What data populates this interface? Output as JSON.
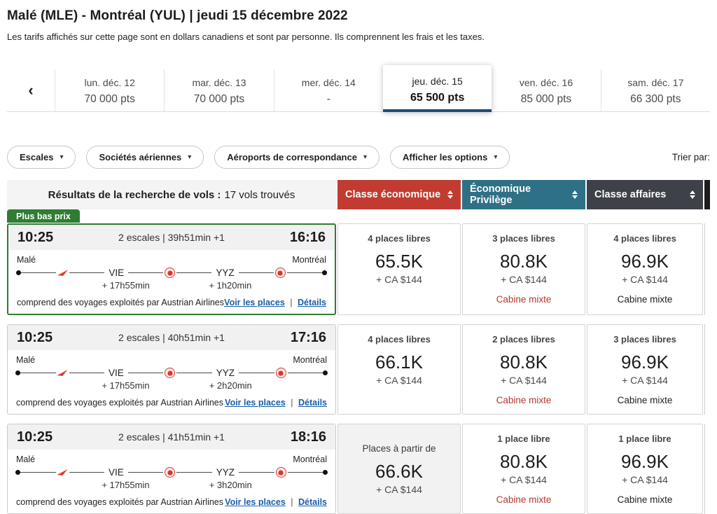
{
  "header": {
    "title": "Malé (MLE) - Montréal (YUL)  |  jeudi 15 décembre 2022",
    "subtitle": "Les tarifs affichés sur cette page sont en dollars canadiens et sont par personne. Ils comprennent les frais et les taxes."
  },
  "icons": {
    "prev_arrow": "‹",
    "dropdown_caret": "▾"
  },
  "date_nav": {
    "days": [
      {
        "label": "lun. déc. 12",
        "points": "70 000 pts",
        "selected": false
      },
      {
        "label": "mar. déc. 13",
        "points": "70 000 pts",
        "selected": false
      },
      {
        "label": "mer. déc. 14",
        "points": "-",
        "selected": false
      },
      {
        "label": "jeu. déc. 15",
        "points": "65 500 pts",
        "selected": true
      },
      {
        "label": "ven. déc. 16",
        "points": "85 000 pts",
        "selected": false
      },
      {
        "label": "sam. déc. 17",
        "points": "66 300 pts",
        "selected": false
      }
    ]
  },
  "filters": {
    "buttons": [
      {
        "label": "Escales"
      },
      {
        "label": "Sociétés aériennes"
      },
      {
        "label": "Aéroports de correspondance"
      },
      {
        "label": "Afficher les options"
      }
    ],
    "sort_label": "Trier par:"
  },
  "results_bar": {
    "title": "Résultats de la recherche de vols :",
    "count": "17 vols trouvés",
    "columns": [
      {
        "label": "Classe économique",
        "color": "#c23b30"
      },
      {
        "label": "Économique Privilège",
        "color": "#2e7086"
      },
      {
        "label": "Classe affaires",
        "color": "#3e4147"
      }
    ]
  },
  "badge": "Plus bas prix",
  "row_common": {
    "note": "comprend des voyages exploités par Austrian Airlines",
    "seats_link": "Voir les places",
    "details_link": "Détails",
    "separator": "|"
  },
  "colors": {
    "economy_header": "#c23b30",
    "premium_header": "#2e7086",
    "business_header": "#3e4147",
    "lowest_badge": "#2e7d32",
    "link": "#1a5fa8",
    "tab_underline": "#1b4e79",
    "mixed_cabin_warning": "#b5392c"
  },
  "flights": [
    {
      "depart": "10:25",
      "summary": "2 escales | 39h51min +1",
      "arrive": "16:16",
      "origin": "Malé",
      "destination": "Montréal",
      "stops": [
        "VIE",
        "YYZ"
      ],
      "layovers": [
        "+ 17h55min",
        "+ 1h20min"
      ],
      "fares": [
        {
          "seats": "4 places libres",
          "points": "65.5K",
          "cash": "+ CA $144",
          "cabin": ""
        },
        {
          "seats": "3 places libres",
          "points": "80.8K",
          "cash": "+ CA $144",
          "cabin": "Cabine mixte"
        },
        {
          "seats": "4 places libres",
          "points": "96.9K",
          "cash": "+ CA $144",
          "cabin": "Cabine mixte"
        }
      ]
    },
    {
      "depart": "10:25",
      "summary": "2 escales | 40h51min +1",
      "arrive": "17:16",
      "origin": "Malé",
      "destination": "Montréal",
      "stops": [
        "VIE",
        "YYZ"
      ],
      "layovers": [
        "+ 17h55min",
        "+ 2h20min"
      ],
      "fares": [
        {
          "seats": "4 places libres",
          "points": "66.1K",
          "cash": "+ CA $144",
          "cabin": ""
        },
        {
          "seats": "2 places libres",
          "points": "80.8K",
          "cash": "+ CA $144",
          "cabin": "Cabine mixte"
        },
        {
          "seats": "3 places libres",
          "points": "96.9K",
          "cash": "+ CA $144",
          "cabin": "Cabine mixte"
        }
      ]
    },
    {
      "depart": "10:25",
      "summary": "2 escales | 41h51min +1",
      "arrive": "18:16",
      "origin": "Malé",
      "destination": "Montréal",
      "stops": [
        "VIE",
        "YYZ"
      ],
      "layovers": [
        "+ 17h55min",
        "+ 3h20min"
      ],
      "fares": [
        {
          "seats": "Places à partir de",
          "points": "66.6K",
          "cash": "+ CA $144",
          "cabin": ""
        },
        {
          "seats": "1 place libre",
          "points": "80.8K",
          "cash": "+ CA $144",
          "cabin": "Cabine mixte"
        },
        {
          "seats": "1 place libre",
          "points": "96.9K",
          "cash": "+ CA $144",
          "cabin": "Cabine mixte"
        }
      ]
    }
  ]
}
